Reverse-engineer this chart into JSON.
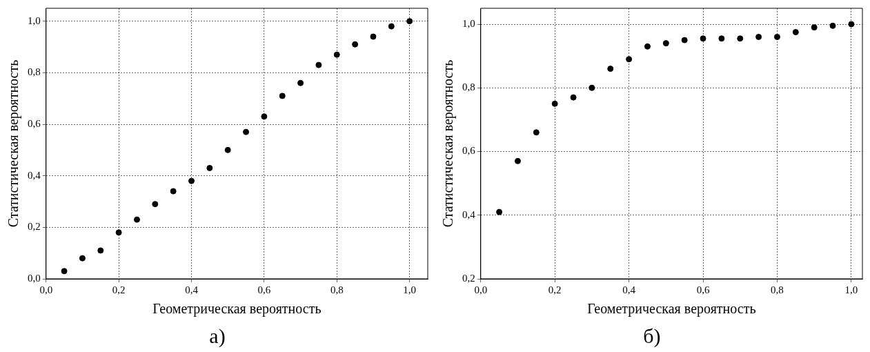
{
  "chart_data": [
    {
      "type": "scatter",
      "xlabel": "Геометрическая вероятность",
      "ylabel": "Статистическая вероятность",
      "annotations": [
        "а)"
      ],
      "marker": "circle",
      "grid": true,
      "x": [
        0.05,
        0.1,
        0.15,
        0.2,
        0.25,
        0.3,
        0.35,
        0.4,
        0.45,
        0.5,
        0.55,
        0.6,
        0.65,
        0.7,
        0.75,
        0.8,
        0.85,
        0.9,
        0.95,
        1.0
      ],
      "series": [
        {
          "color": "#000000",
          "values": [
            0.03,
            0.08,
            0.11,
            0.18,
            0.23,
            0.29,
            0.34,
            0.38,
            0.43,
            0.5,
            0.57,
            0.63,
            0.71,
            0.76,
            0.83,
            0.87,
            0.91,
            0.94,
            0.98,
            1.0
          ]
        }
      ],
      "xlim": [
        0,
        1.05
      ],
      "ylim": [
        0,
        1.05
      ],
      "xticks": [
        {
          "value": 0,
          "label": "0,0"
        },
        {
          "value": 0.2,
          "label": "0,2"
        },
        {
          "value": 0.4,
          "label": "0,4"
        },
        {
          "value": 0.6,
          "label": "0,6"
        },
        {
          "value": 0.8,
          "label": "0,8"
        },
        {
          "value": 1,
          "label": "1,0"
        }
      ],
      "yticks": [
        {
          "value": 0,
          "label": "0,0"
        },
        {
          "value": 0.2,
          "label": "0,2"
        },
        {
          "value": 0.4,
          "label": "0,4"
        },
        {
          "value": 0.6,
          "label": "0,6"
        },
        {
          "value": 0.8,
          "label": "0,8"
        },
        {
          "value": 1,
          "label": "1,0"
        }
      ]
    },
    {
      "type": "scatter",
      "xlabel": "Геометрическая вероятность",
      "ylabel": "Статистическая вероятность",
      "annotations": [
        "б)"
      ],
      "marker": "circle",
      "grid": true,
      "x": [
        0.05,
        0.1,
        0.15,
        0.2,
        0.25,
        0.3,
        0.35,
        0.4,
        0.45,
        0.5,
        0.55,
        0.6,
        0.65,
        0.7,
        0.75,
        0.8,
        0.85,
        0.9,
        0.95,
        1.0
      ],
      "series": [
        {
          "color": "#000000",
          "values": [
            0.41,
            0.57,
            0.66,
            0.75,
            0.77,
            0.8,
            0.86,
            0.89,
            0.93,
            0.94,
            0.95,
            0.955,
            0.955,
            0.955,
            0.96,
            0.96,
            0.975,
            0.99,
            0.995,
            1.0
          ]
        }
      ],
      "xlim": [
        0,
        1.03
      ],
      "ylim": [
        0.2,
        1.05
      ],
      "xticks": [
        {
          "value": 0,
          "label": "0,0"
        },
        {
          "value": 0.2,
          "label": "0,2"
        },
        {
          "value": 0.4,
          "label": "0,4"
        },
        {
          "value": 0.6,
          "label": "0,6"
        },
        {
          "value": 0.8,
          "label": "0,8"
        },
        {
          "value": 1,
          "label": "1,0"
        }
      ],
      "yticks": [
        {
          "value": 0.2,
          "label": "0,2"
        },
        {
          "value": 0.4,
          "label": "0,4"
        },
        {
          "value": 0.6,
          "label": "0,6"
        },
        {
          "value": 0.8,
          "label": "0,8"
        },
        {
          "value": 1,
          "label": "1,0"
        }
      ]
    }
  ]
}
